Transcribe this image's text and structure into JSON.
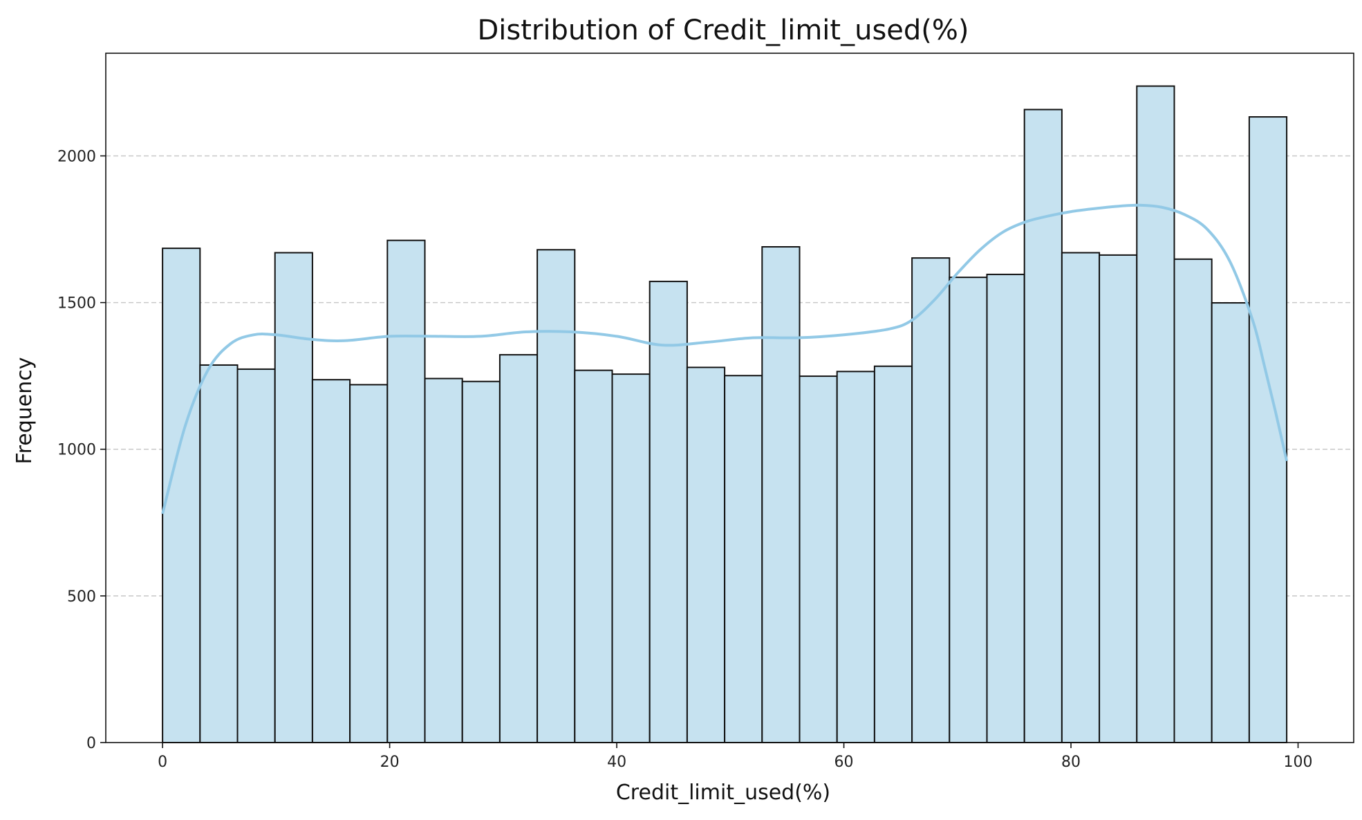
{
  "chart_data": {
    "type": "bar",
    "title": "Distribution of Credit_limit_used(%)",
    "xlabel": "Credit_limit_used(%)",
    "ylabel": "Frequency",
    "xlim": [
      -5,
      104.9
    ],
    "ylim": [
      0,
      2350
    ],
    "xticks": [
      0,
      20,
      40,
      60,
      80,
      100
    ],
    "yticks": [
      0,
      500,
      1000,
      1500,
      2000
    ],
    "grid": {
      "axis": "y",
      "style": "dashed"
    },
    "bin_edges": [
      0,
      3.3,
      6.6,
      9.9,
      13.2,
      16.5,
      19.8,
      23.1,
      26.4,
      29.7,
      33.0,
      36.3,
      39.6,
      42.9,
      46.2,
      49.5,
      52.8,
      56.1,
      59.4,
      62.7,
      66.0,
      69.3,
      72.6,
      75.9,
      79.2,
      82.5,
      85.8,
      89.1,
      92.4,
      95.7,
      99.0
    ],
    "values": [
      1685,
      1287,
      1273,
      1670,
      1237,
      1220,
      1712,
      1241,
      1231,
      1322,
      1680,
      1269,
      1256,
      1572,
      1279,
      1251,
      1690,
      1249,
      1265,
      1283,
      1652,
      1586,
      1596,
      2158,
      1670,
      1662,
      2238,
      1648,
      1499,
      2133
    ],
    "bar_color": "#c6e2f0",
    "bar_edge_color": "#111111",
    "kde": {
      "color": "#92c9e6",
      "x": [
        0,
        2,
        4,
        6,
        8,
        10,
        13,
        16,
        20,
        24,
        28,
        32,
        36,
        40,
        44,
        48,
        52,
        56,
        60,
        64,
        66,
        68,
        70,
        72,
        74,
        76,
        78,
        80,
        82,
        84,
        86,
        88,
        90,
        92,
        94,
        96,
        97,
        98,
        99
      ],
      "y": [
        780,
        1080,
        1270,
        1360,
        1390,
        1390,
        1375,
        1370,
        1385,
        1385,
        1385,
        1400,
        1400,
        1385,
        1355,
        1365,
        1380,
        1380,
        1390,
        1410,
        1440,
        1510,
        1600,
        1680,
        1740,
        1775,
        1795,
        1810,
        1820,
        1828,
        1832,
        1825,
        1800,
        1750,
        1640,
        1440,
        1290,
        1130,
        960
      ]
    }
  }
}
